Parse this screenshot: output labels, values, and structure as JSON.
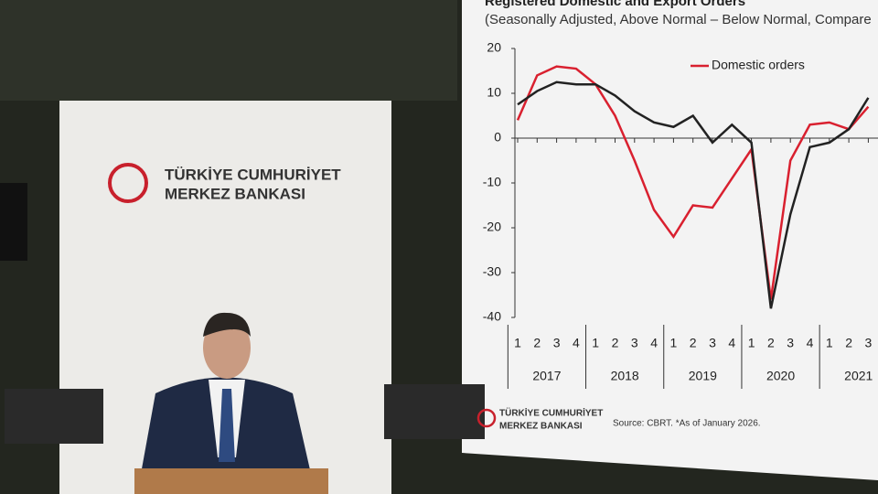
{
  "banner": {
    "logo_line1": "TÜRKİYE CUMHURİYET",
    "logo_line2": "MERKEZ BANKASI"
  },
  "screen_logo": {
    "line1": "TÜRKİYE CUMHURİYET",
    "line2": "MERKEZ BANKASI"
  },
  "chart_data": {
    "type": "line",
    "title": "Registered Domestic and Export Orders",
    "subtitle": "(Seasonally Adjusted, Above Normal – Below Normal, Compare",
    "categories": [
      "1",
      "2",
      "3",
      "4",
      "1",
      "2",
      "3",
      "4",
      "1",
      "2",
      "3",
      "4",
      "1",
      "2",
      "3",
      "4",
      "1",
      "2",
      "3"
    ],
    "years": [
      "2017",
      "2018",
      "2019",
      "2020",
      "2021"
    ],
    "ylim": [
      -40,
      20
    ],
    "yticks": [
      20,
      10,
      0,
      -10,
      -20,
      -30,
      -40
    ],
    "series": [
      {
        "name": "Domestic orders",
        "color": "#d9202f",
        "values": [
          4,
          14,
          16,
          15.5,
          12,
          5,
          -5,
          -16,
          -22,
          -15,
          -15.5,
          -9,
          -2.5,
          -36,
          -5,
          3,
          3.5,
          2,
          7
        ]
      },
      {
        "color": "#222222",
        "values": [
          7.5,
          10.5,
          12.5,
          12,
          12,
          9.5,
          6,
          3.5,
          2.5,
          5,
          -1,
          3,
          -1,
          -38,
          -17,
          -2,
          -1,
          2,
          9
        ]
      }
    ],
    "source": "Source: CBRT. *As of January 2026."
  }
}
